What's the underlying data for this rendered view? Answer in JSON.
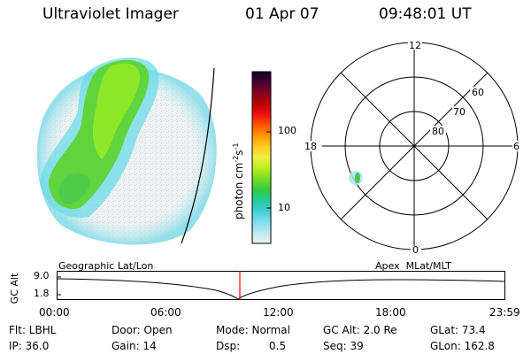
{
  "header": {
    "instrument": "Ultraviolet Imager",
    "date": "01 Apr 07",
    "time": "09:48:01 UT"
  },
  "colorbar": {
    "unit_label": "photon cm",
    "unit_exp1": "-2",
    "unit_mid": "s",
    "unit_exp2": "-1",
    "tick_100": "100",
    "tick_10": "10",
    "stops": [
      "#eaf1f3",
      "#bfe8f0",
      "#80dfee",
      "#3fd0d8",
      "#22cc99",
      "#33cc44",
      "#77dd22",
      "#bbee22",
      "#eeee44",
      "#ffcc22",
      "#ff9900",
      "#ff5500",
      "#ee1111",
      "#bb0000",
      "#880022",
      "#440033",
      "#110022"
    ]
  },
  "polar_plot": {
    "mlt_labels": {
      "top": "12",
      "right": "6",
      "bottom": "0",
      "left": "18"
    },
    "lat_labels": [
      "60",
      "70",
      "80"
    ]
  },
  "timeline": {
    "axis_label": "GC Alt",
    "y_top": "9.0",
    "y_bottom": "1.8",
    "left_title": "Geographic Lat/Lon",
    "right_title": "Apex  MLat/MLT",
    "x_ticks": [
      "00:00",
      "06:00",
      "12:00",
      "18:00",
      "23:59"
    ],
    "current_time_fraction": 0.408,
    "marker_color": "#ff0000"
  },
  "status": {
    "flt": "Flt: LBHL",
    "ip": "IP: 36.0",
    "door": "Door: Open",
    "gain": "Gain: 14",
    "mode": "Mode: Normal",
    "dsp_label": "Dsp:",
    "dsp_value": "0.5",
    "gc_alt": "GC Alt: 2.0 Re",
    "seq": "Seq: 39",
    "glat": "GLat: 73.4",
    "glon": "GLon: 162.8"
  }
}
